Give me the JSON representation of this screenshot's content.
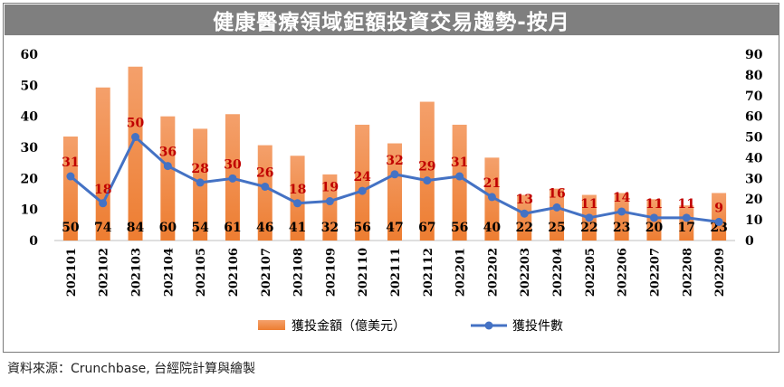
{
  "title": "健康醫療領域鉅額投資交易趨勢-按月",
  "source": "資料來源：Crunchbase, 台經院計算與繪製",
  "colors": {
    "bar": "#ed7d31",
    "bar_light": "#f4a06b",
    "line": "#4472c4",
    "count_label": "#c00000",
    "amount_label": "#000000",
    "title_bg": "#7f7f7f"
  },
  "chart_data": {
    "type": "bar+line",
    "categories": [
      "202101",
      "202102",
      "202103",
      "202104",
      "202105",
      "202106",
      "202107",
      "202108",
      "202109",
      "202110",
      "202111",
      "202112",
      "202201",
      "202202",
      "202203",
      "202204",
      "202205",
      "202206",
      "202207",
      "202208",
      "202209"
    ],
    "series": [
      {
        "name": "獲投金額（億美元）",
        "type": "bar",
        "axis": "left",
        "values": [
          33.5,
          49.3,
          56,
          40,
          36,
          40.7,
          30.7,
          27.3,
          21.3,
          37.3,
          31.3,
          44.7,
          37.3,
          26.7,
          14.7,
          16.7,
          14.7,
          15.3,
          13.3,
          11.3,
          15.3
        ],
        "data_labels": [
          "50",
          "74",
          "84",
          "60",
          "54",
          "61",
          "46",
          "41",
          "32",
          "56",
          "47",
          "67",
          "56",
          "40",
          "22",
          "25",
          "22",
          "23",
          "20",
          "17",
          "23"
        ]
      },
      {
        "name": "獲投件數",
        "type": "line",
        "axis": "right",
        "values": [
          31,
          18,
          50,
          36,
          28,
          30,
          26,
          18,
          19,
          24,
          32,
          29,
          31,
          21,
          13,
          16,
          11,
          14,
          11,
          11,
          9
        ],
        "data_labels": [
          "31",
          "18",
          "50",
          "36",
          "28",
          "30",
          "26",
          "18",
          "19",
          "24",
          "32",
          "29",
          "31",
          "21",
          "13",
          "16",
          "11",
          "14",
          "11",
          "11",
          "9"
        ]
      }
    ],
    "y_left": {
      "min": 0,
      "max": 60,
      "ticks": [
        "0",
        "10",
        "20",
        "30",
        "40",
        "50",
        "60"
      ]
    },
    "y_right": {
      "min": 0,
      "max": 90,
      "ticks": [
        "0",
        "10",
        "20",
        "30",
        "40",
        "50",
        "60",
        "70",
        "80",
        "90"
      ]
    },
    "grid": false,
    "legend_position": "bottom"
  }
}
